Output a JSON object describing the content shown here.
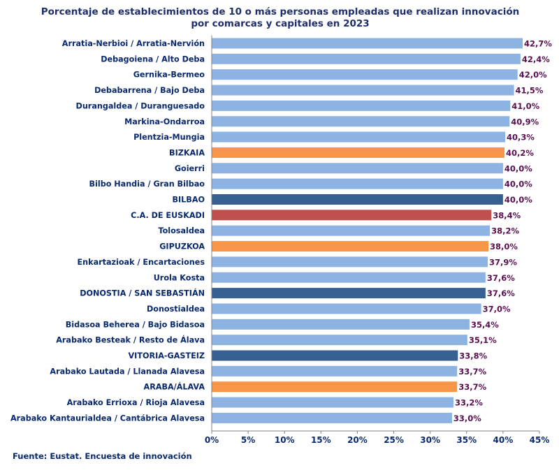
{
  "chart_data": {
    "type": "bar",
    "orientation": "horizontal",
    "title": "Porcentaje de establecimientos de 10 o más personas empleadas que realizan innovación",
    "subtitle": "por comarcas y capitales en 2023",
    "xlabel": "",
    "ylabel": "",
    "xlim": [
      0,
      45
    ],
    "x_ticks": [
      "0%",
      "5%",
      "10%",
      "15%",
      "20%",
      "25%",
      "30%",
      "35%",
      "40%",
      "45%"
    ],
    "categories": [
      "Arratia-Nerbioi / Arratia-Nervión",
      "Debagoiena  /  Alto Deba",
      "Gernika-Bermeo",
      "Debabarrena / Bajo Deba",
      "Durangaldea  /  Duranguesado",
      "Markina-Ondarroa",
      "Plentzia-Mungia",
      "BIZKAIA",
      "Goierri",
      "Bilbo Handia  /  Gran Bilbao",
      "BILBAO",
      "C.A. DE EUSKADI",
      "Tolosaldea",
      "GIPUZKOA",
      "Enkartazioak  /  Encartaciones",
      "Urola Kosta",
      "DONOSTIA / SAN SEBASTIÁN",
      "Donostialdea",
      "Bidasoa Beherea  /  Bajo Bidasoa",
      "Arabako Besteak / Resto de Álava",
      "VITORIA-GASTEIZ",
      "Arabako Lautada  /  Llanada Alavesa",
      "ARABA/ÁLAVA",
      "Arabako Errioxa / Rioja Alavesa",
      "Arabako Kantaurialdea / Cantábrica Alavesa"
    ],
    "values": [
      42.7,
      42.4,
      42.0,
      41.5,
      41.0,
      40.9,
      40.3,
      40.2,
      40.0,
      40.0,
      40.0,
      38.4,
      38.2,
      38.0,
      37.9,
      37.6,
      37.6,
      37.0,
      35.4,
      35.1,
      33.8,
      33.7,
      33.7,
      33.2,
      33.0
    ],
    "value_labels": [
      "42,7%",
      "42,4%",
      "42,0%",
      "41,5%",
      "41,0%",
      "40,9%",
      "40,3%",
      "40,2%",
      "40,0%",
      "40,0%",
      "40,0%",
      "38,4%",
      "38,2%",
      "38,0%",
      "37,9%",
      "37,6%",
      "37,6%",
      "37,0%",
      "35,4%",
      "35,1%",
      "33,8%",
      "33,7%",
      "33,7%",
      "33,2%",
      "33,0%"
    ],
    "bar_kinds": [
      "comarca",
      "comarca",
      "comarca",
      "comarca",
      "comarca",
      "comarca",
      "comarca",
      "territorio",
      "comarca",
      "comarca",
      "capital",
      "euskadi",
      "comarca",
      "territorio",
      "comarca",
      "comarca",
      "capital",
      "comarca",
      "comarca",
      "comarca",
      "capital",
      "comarca",
      "territorio",
      "comarca",
      "comarca"
    ],
    "colors": {
      "comarca": "#8db3e2",
      "territorio": "#f79646",
      "capital": "#376092",
      "euskadi": "#c0504d"
    },
    "grid": false
  },
  "source": "Fuente: Eustat. Encuesta de innovación"
}
